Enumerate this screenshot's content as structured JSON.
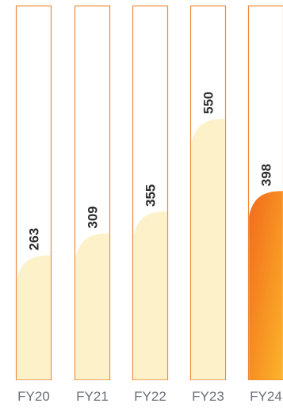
{
  "chart_data": {
    "type": "bar",
    "categories": [
      "FY20",
      "FY21",
      "FY22",
      "FY23",
      "FY24"
    ],
    "values": [
      263,
      309,
      355,
      550,
      398
    ],
    "ylim": [
      0,
      700
    ],
    "title": "",
    "xlabel": "",
    "ylabel": "",
    "grid": false,
    "highlight_index": 4
  },
  "colors": {
    "outline": "#f0893a",
    "fill": "#fdf1c9",
    "highlight_top": "#f26a1b",
    "highlight_bottom": "#fbb42a",
    "tick_text": "#6b6f76",
    "value_text": "#2b2b2b"
  }
}
